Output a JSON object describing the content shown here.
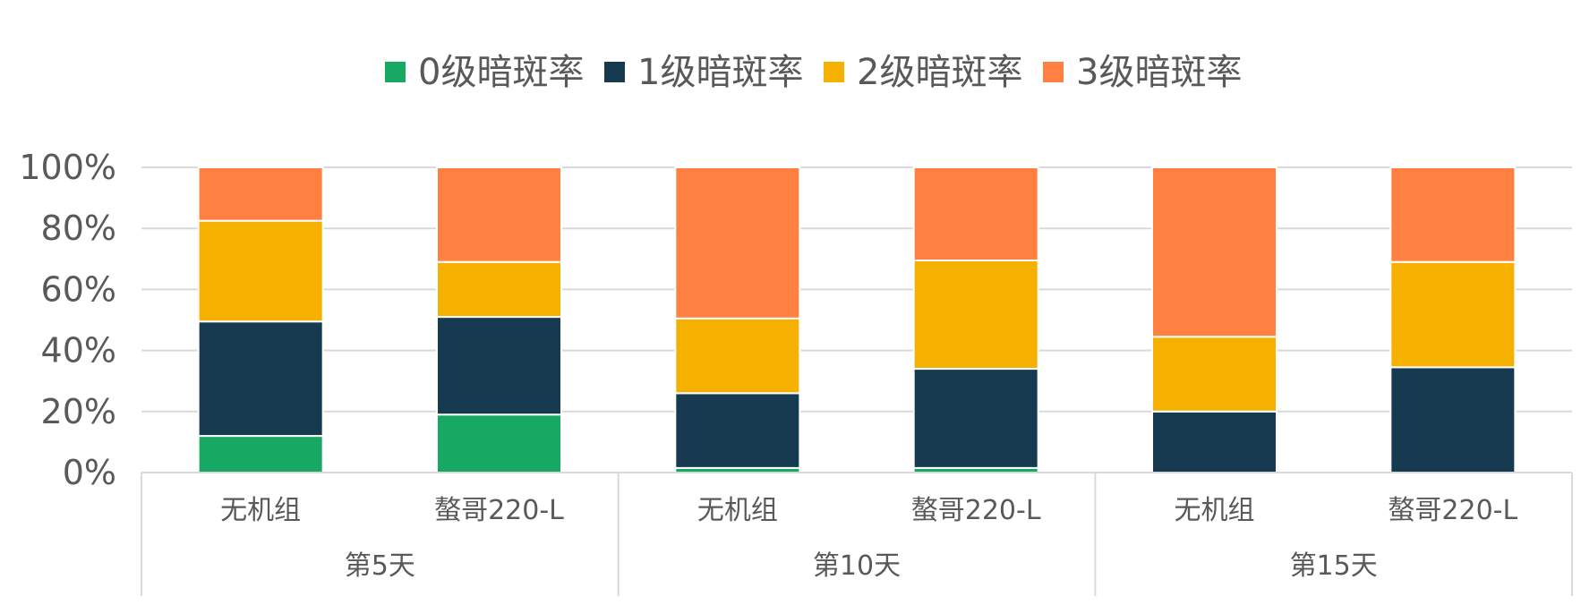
{
  "chart_data": {
    "type": "bar",
    "stacked": true,
    "percent_stacked": true,
    "title": "",
    "xlabel": "",
    "ylabel": "",
    "ylim": [
      0,
      100
    ],
    "y_ticks": [
      "0%",
      "20%",
      "40%",
      "60%",
      "80%",
      "100%"
    ],
    "y_tick_values": [
      0,
      20,
      40,
      60,
      80,
      100
    ],
    "grid": true,
    "legend_position": "top",
    "categories": [
      {
        "group": "第5天",
        "label": "无机组"
      },
      {
        "group": "第5天",
        "label": "螯哥220-L"
      },
      {
        "group": "第10天",
        "label": "无机组"
      },
      {
        "group": "第10天",
        "label": "螯哥220-L"
      },
      {
        "group": "第15天",
        "label": "无机组"
      },
      {
        "group": "第15天",
        "label": "螯哥220-L"
      }
    ],
    "groups": [
      "第5天",
      "第10天",
      "第15天"
    ],
    "series": [
      {
        "name": "0级暗斑率",
        "color": "#17A963",
        "values": [
          12,
          19,
          1.5,
          1.5,
          0,
          0
        ]
      },
      {
        "name": "1级暗斑率",
        "color": "#163A50",
        "values": [
          37.5,
          32,
          24.5,
          32.5,
          20,
          34.5
        ]
      },
      {
        "name": "2级暗斑率",
        "color": "#F5B000",
        "values": [
          33,
          18,
          24.5,
          35.5,
          24.5,
          34.5
        ]
      },
      {
        "name": "3级暗斑率",
        "color": "#FF8040",
        "values": [
          17.5,
          31,
          49.5,
          30.5,
          55.5,
          31
        ]
      }
    ]
  }
}
